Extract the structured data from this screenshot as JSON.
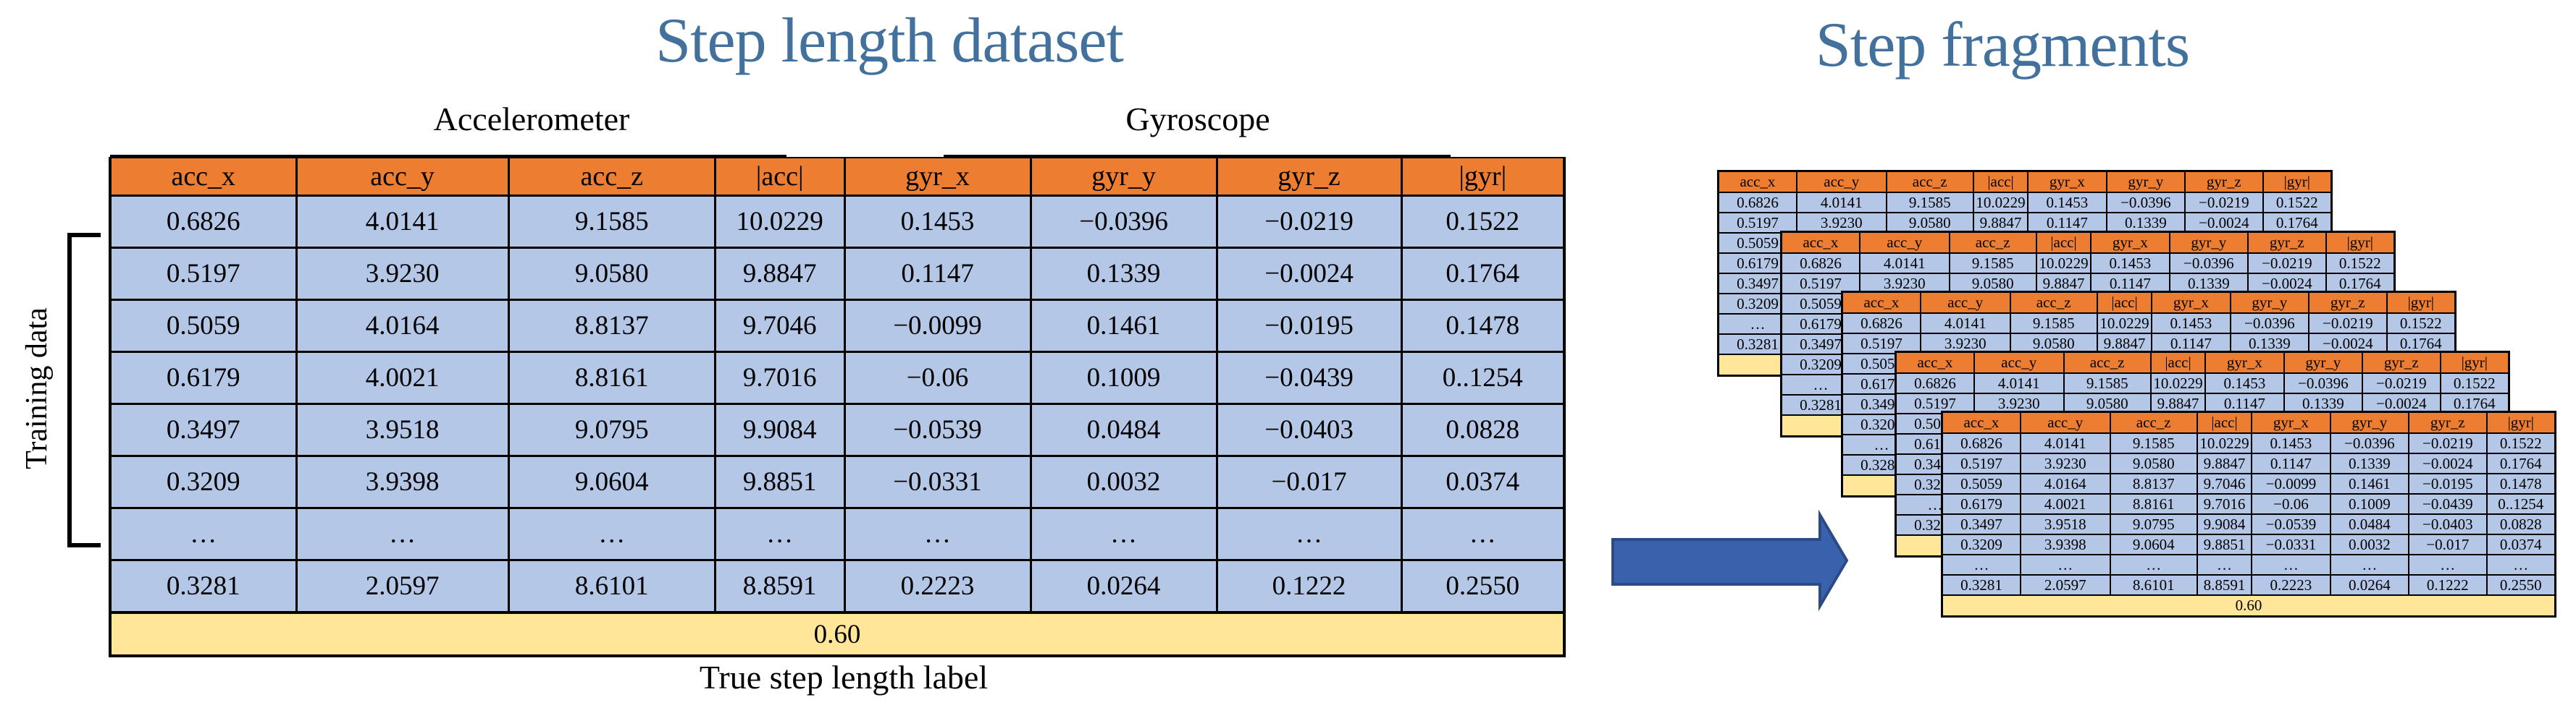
{
  "figure": {
    "left_title": "Step length dataset",
    "right_title": "Step fragments",
    "sensor_groups": {
      "accelerometer": "Accelerometer",
      "gyroscope": "Gyroscope"
    },
    "training_label": "Training data",
    "true_label_caption": "True step length label"
  },
  "table": {
    "columns": [
      "acc_x",
      "acc_y",
      "acc_z",
      "|acc|",
      "gyr_x",
      "gyr_y",
      "gyr_z",
      "|gyr|"
    ],
    "rows": [
      [
        "0.6826",
        "4.0141",
        "9.1585",
        "10.0229",
        "0.1453",
        "−0.0396",
        "−0.0219",
        "0.1522"
      ],
      [
        "0.5197",
        "3.9230",
        "9.0580",
        "9.8847",
        "0.1147",
        "0.1339",
        "−0.0024",
        "0.1764"
      ],
      [
        "0.5059",
        "4.0164",
        "8.8137",
        "9.7046",
        "−0.0099",
        "0.1461",
        "−0.0195",
        "0.1478"
      ],
      [
        "0.6179",
        "4.0021",
        "8.8161",
        "9.7016",
        "−0.06",
        "0.1009",
        "−0.0439",
        "0..1254"
      ],
      [
        "0.3497",
        "3.9518",
        "9.0795",
        "9.9084",
        "−0.0539",
        "0.0484",
        "−0.0403",
        "0.0828"
      ],
      [
        "0.3209",
        "3.9398",
        "9.0604",
        "9.8851",
        "−0.0331",
        "0.0032",
        "−0.017",
        "0.0374"
      ],
      [
        "…",
        "…",
        "…",
        "…",
        "…",
        "…",
        "…",
        "…"
      ],
      [
        "0.3281",
        "2.0597",
        "8.6101",
        "8.8591",
        "0.2223",
        "0.0264",
        "0.1222",
        "0.2550"
      ]
    ],
    "step_length_label": "0.60"
  },
  "fragments": {
    "count": 5
  },
  "colors": {
    "header_orange": "#ED7D31",
    "cell_blue": "#B4C7E7",
    "label_yellow": "#FFE699",
    "title_blue": "#41719C",
    "arrow_fill": "#3A62AC",
    "arrow_border": "#2B4A86"
  }
}
